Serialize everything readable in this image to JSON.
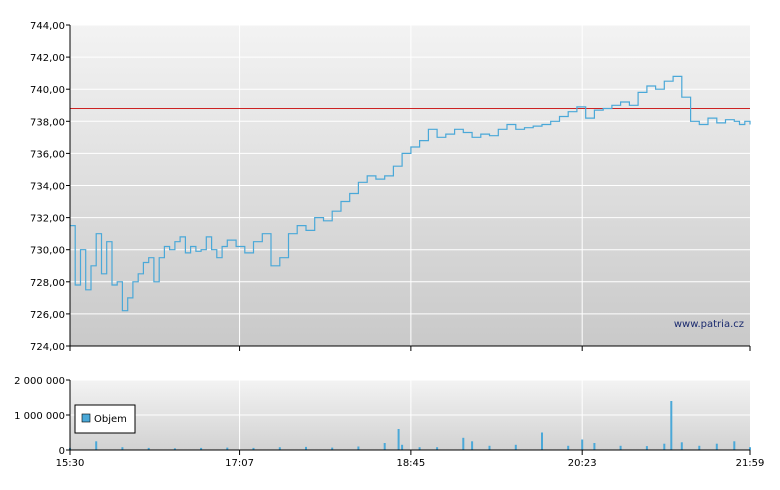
{
  "watermark": "www.patria.cz",
  "colors": {
    "price_line": "#4aa8d8",
    "reference_line": "#cc2222",
    "volume_bar": "#4aa8d8",
    "grid": "#ffffff",
    "axis": "#000000"
  },
  "chart_data": [
    {
      "type": "line",
      "title": "",
      "x_ticks": [
        "15:30",
        "17:07",
        "18:45",
        "20:23",
        "21:59"
      ],
      "x_range": [
        "15:30",
        "21:59"
      ],
      "y_ticks": [
        "744,00",
        "742,00",
        "740,00",
        "738,00",
        "736,00",
        "734,00",
        "732,00",
        "730,00",
        "728,00",
        "726,00",
        "724,00"
      ],
      "ylim": [
        724,
        744
      ],
      "grid": true,
      "reference_line": 738.8,
      "series": [
        {
          "x": [
            "15:30",
            "15:33",
            "15:36",
            "15:39",
            "15:42",
            "15:45",
            "15:48",
            "15:51",
            "15:54",
            "15:57",
            "16:00",
            "16:03",
            "16:06",
            "16:09",
            "16:12",
            "16:15",
            "16:18",
            "16:21",
            "16:24",
            "16:27",
            "16:30",
            "16:33",
            "16:36",
            "16:39",
            "16:42",
            "16:45",
            "16:48",
            "16:51",
            "16:54",
            "16:57",
            "17:00",
            "17:05",
            "17:10",
            "17:15",
            "17:20",
            "17:25",
            "17:30",
            "17:35",
            "17:40",
            "17:45",
            "17:50",
            "17:55",
            "18:00",
            "18:05",
            "18:10",
            "18:15",
            "18:20",
            "18:25",
            "18:30",
            "18:35",
            "18:40",
            "18:45",
            "18:50",
            "18:55",
            "19:00",
            "19:05",
            "19:10",
            "19:15",
            "19:20",
            "19:25",
            "19:30",
            "19:35",
            "19:40",
            "19:45",
            "19:50",
            "19:55",
            "20:00",
            "20:05",
            "20:10",
            "20:15",
            "20:20",
            "20:25",
            "20:30",
            "20:35",
            "20:40",
            "20:45",
            "20:50",
            "20:55",
            "21:00",
            "21:05",
            "21:10",
            "21:15",
            "21:20",
            "21:25",
            "21:30",
            "21:35",
            "21:40",
            "21:45",
            "21:50",
            "21:53",
            "21:56",
            "21:59"
          ],
          "values": [
            731.5,
            727.8,
            730.0,
            727.5,
            729.0,
            731.0,
            728.5,
            730.5,
            727.8,
            728.0,
            726.2,
            727.0,
            728.0,
            728.5,
            729.2,
            729.5,
            728.0,
            729.5,
            730.2,
            730.0,
            730.5,
            730.8,
            729.8,
            730.2,
            729.9,
            730.0,
            730.8,
            730.0,
            729.5,
            730.2,
            730.6,
            730.2,
            729.8,
            730.5,
            731.0,
            729.0,
            729.5,
            731.0,
            731.5,
            731.2,
            732.0,
            731.8,
            732.4,
            733.0,
            733.5,
            734.2,
            734.6,
            734.4,
            734.6,
            735.2,
            736.0,
            736.4,
            736.8,
            737.5,
            737.0,
            737.2,
            737.5,
            737.3,
            737.0,
            737.2,
            737.1,
            737.5,
            737.8,
            737.5,
            737.6,
            737.7,
            737.8,
            738.0,
            738.3,
            738.6,
            738.9,
            738.2,
            738.7,
            738.8,
            739.0,
            739.2,
            739.0,
            739.8,
            740.2,
            740.0,
            740.5,
            740.8,
            739.5,
            738.0,
            737.8,
            738.2,
            737.9,
            738.1,
            738.0,
            737.8,
            738.0,
            737.8
          ]
        }
      ]
    },
    {
      "type": "bar",
      "title": "",
      "legend": [
        "Objem"
      ],
      "legend_position": "left",
      "y_ticks": [
        "2 000 000",
        "1 000 000",
        "0"
      ],
      "ylim": [
        0,
        2000000
      ],
      "x_ticks": [
        "15:30",
        "17:07",
        "18:45",
        "20:23",
        "21:59"
      ],
      "series": [
        {
          "name": "Objem",
          "x": [
            "15:30",
            "15:45",
            "16:00",
            "16:15",
            "16:30",
            "16:45",
            "17:00",
            "17:15",
            "17:30",
            "17:45",
            "18:00",
            "18:15",
            "18:30",
            "18:38",
            "18:40",
            "18:50",
            "19:00",
            "19:15",
            "19:20",
            "19:30",
            "19:45",
            "20:00",
            "20:15",
            "20:23",
            "20:30",
            "20:45",
            "21:00",
            "21:10",
            "21:14",
            "21:20",
            "21:30",
            "21:40",
            "21:50",
            "21:59"
          ],
          "values": [
            60000,
            250000,
            80000,
            60000,
            50000,
            60000,
            70000,
            60000,
            80000,
            90000,
            70000,
            100000,
            200000,
            600000,
            150000,
            80000,
            80000,
            350000,
            250000,
            120000,
            150000,
            500000,
            120000,
            300000,
            200000,
            120000,
            110000,
            180000,
            1400000,
            220000,
            120000,
            180000,
            250000,
            80000
          ]
        }
      ]
    }
  ]
}
